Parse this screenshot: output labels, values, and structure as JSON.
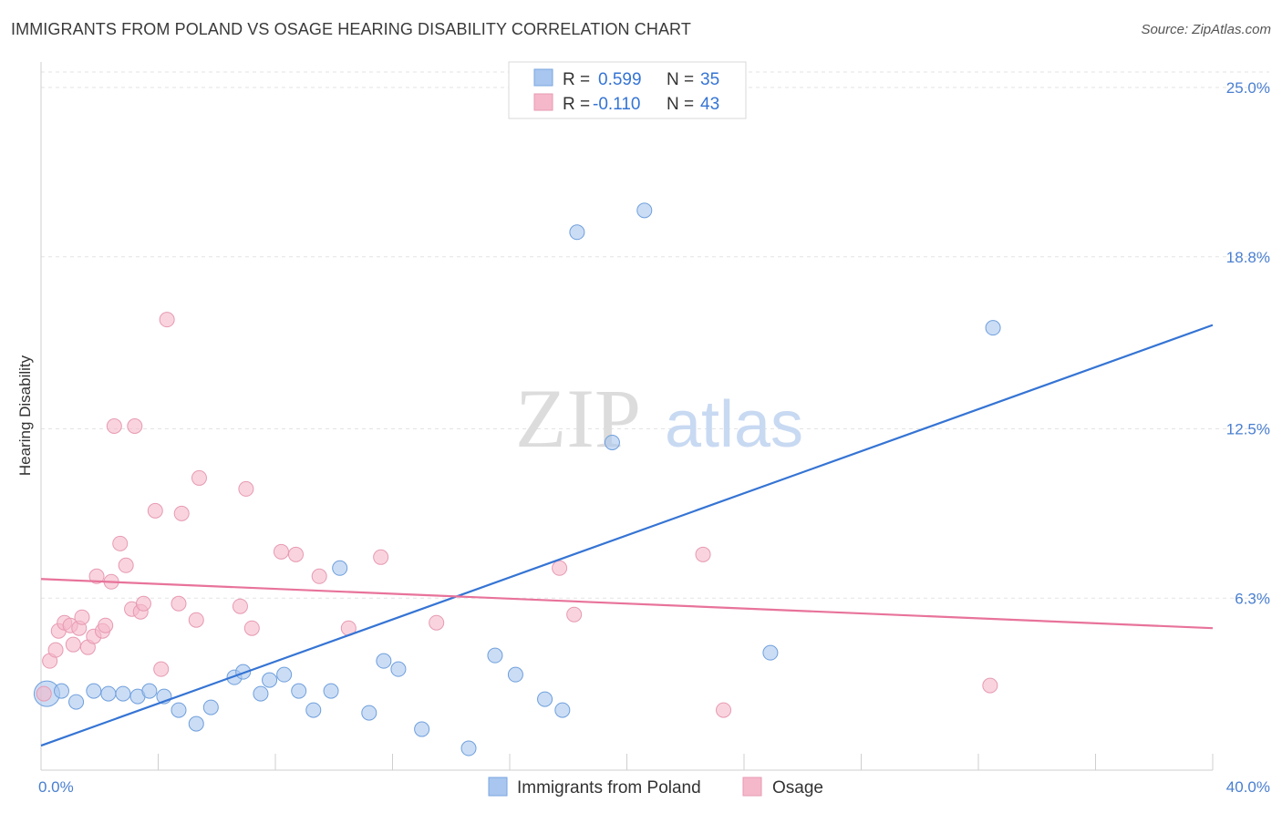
{
  "header": {
    "title": "IMMIGRANTS FROM POLAND VS OSAGE HEARING DISABILITY CORRELATION CHART",
    "source": "Source: ZipAtlas.com"
  },
  "watermark": {
    "zip": "ZIP",
    "atlas": "atlas"
  },
  "legend_top": [
    {
      "r_label": "R =",
      "r_value": "0.599",
      "n_label": "N =",
      "n_value": "35",
      "color": "#a8c6ef"
    },
    {
      "r_label": "R =",
      "r_value": "-0.110",
      "n_label": "N =",
      "n_value": "43",
      "color": "#f5b8ca"
    }
  ],
  "legend_bottom": [
    {
      "label": "Immigrants from Poland",
      "color": "#a8c6ef"
    },
    {
      "label": "Osage",
      "color": "#f5b8ca"
    }
  ],
  "chart_data": {
    "type": "scatter",
    "xlabel": "",
    "ylabel": "Hearing Disability",
    "xlim": [
      0,
      40
    ],
    "ylim": [
      0,
      25
    ],
    "x_tick_labels": [
      {
        "value": 0,
        "label": "0.0%"
      },
      {
        "value": 40,
        "label": "40.0%"
      }
    ],
    "y_ticks": [
      {
        "value": 6.3,
        "label": "6.3%"
      },
      {
        "value": 12.5,
        "label": "12.5%"
      },
      {
        "value": 18.8,
        "label": "18.8%"
      },
      {
        "value": 25.0,
        "label": "25.0%"
      }
    ],
    "grid": true,
    "series": [
      {
        "name": "Immigrants from Poland",
        "color": "#a8c6ef",
        "stroke": "#6f9fdc",
        "line_color": "#3574d4",
        "trend": [
          [
            0,
            0.9
          ],
          [
            40,
            16.3
          ]
        ],
        "points": [
          [
            0.2,
            2.8
          ],
          [
            0.7,
            2.9
          ],
          [
            1.2,
            2.5
          ],
          [
            1.8,
            2.9
          ],
          [
            2.3,
            2.8
          ],
          [
            2.8,
            2.8
          ],
          [
            3.3,
            2.7
          ],
          [
            3.7,
            2.9
          ],
          [
            4.2,
            2.7
          ],
          [
            4.7,
            2.2
          ],
          [
            5.3,
            1.7
          ],
          [
            5.8,
            2.3
          ],
          [
            6.6,
            3.4
          ],
          [
            6.9,
            3.6
          ],
          [
            7.5,
            2.8
          ],
          [
            7.8,
            3.3
          ],
          [
            8.3,
            3.5
          ],
          [
            8.8,
            2.9
          ],
          [
            9.3,
            2.2
          ],
          [
            9.9,
            2.9
          ],
          [
            10.2,
            7.4
          ],
          [
            11.2,
            2.1
          ],
          [
            11.7,
            4.0
          ],
          [
            12.2,
            3.7
          ],
          [
            13.0,
            1.5
          ],
          [
            14.6,
            0.8
          ],
          [
            15.5,
            4.2
          ],
          [
            16.2,
            3.5
          ],
          [
            17.2,
            2.6
          ],
          [
            17.8,
            2.2
          ],
          [
            18.3,
            19.7
          ],
          [
            19.5,
            12.0
          ],
          [
            20.6,
            20.5
          ],
          [
            24.9,
            4.3
          ],
          [
            32.5,
            16.2
          ]
        ]
      },
      {
        "name": "Osage",
        "color": "#f5b8ca",
        "stroke": "#e79ab2",
        "line_color": "#e8739a",
        "trend": [
          [
            0,
            7.0
          ],
          [
            40,
            5.2
          ]
        ],
        "points": [
          [
            0.1,
            2.8
          ],
          [
            0.3,
            4.0
          ],
          [
            0.5,
            4.4
          ],
          [
            0.6,
            5.1
          ],
          [
            0.8,
            5.4
          ],
          [
            1.0,
            5.3
          ],
          [
            1.1,
            4.6
          ],
          [
            1.3,
            5.2
          ],
          [
            1.4,
            5.6
          ],
          [
            1.6,
            4.5
          ],
          [
            1.8,
            4.9
          ],
          [
            1.9,
            7.1
          ],
          [
            2.1,
            5.1
          ],
          [
            2.2,
            5.3
          ],
          [
            2.4,
            6.9
          ],
          [
            2.5,
            12.6
          ],
          [
            2.7,
            8.3
          ],
          [
            2.9,
            7.5
          ],
          [
            3.1,
            5.9
          ],
          [
            3.2,
            12.6
          ],
          [
            3.4,
            5.8
          ],
          [
            3.5,
            6.1
          ],
          [
            3.9,
            9.5
          ],
          [
            4.1,
            3.7
          ],
          [
            4.3,
            16.5
          ],
          [
            4.7,
            6.1
          ],
          [
            4.8,
            9.4
          ],
          [
            5.3,
            5.5
          ],
          [
            5.4,
            10.7
          ],
          [
            6.8,
            6.0
          ],
          [
            7.0,
            10.3
          ],
          [
            7.2,
            5.2
          ],
          [
            8.2,
            8.0
          ],
          [
            8.7,
            7.9
          ],
          [
            9.5,
            7.1
          ],
          [
            10.5,
            5.2
          ],
          [
            11.6,
            7.8
          ],
          [
            13.5,
            5.4
          ],
          [
            17.7,
            7.4
          ],
          [
            18.2,
            5.7
          ],
          [
            22.6,
            7.9
          ],
          [
            23.3,
            2.2
          ],
          [
            32.4,
            3.1
          ]
        ]
      }
    ]
  }
}
